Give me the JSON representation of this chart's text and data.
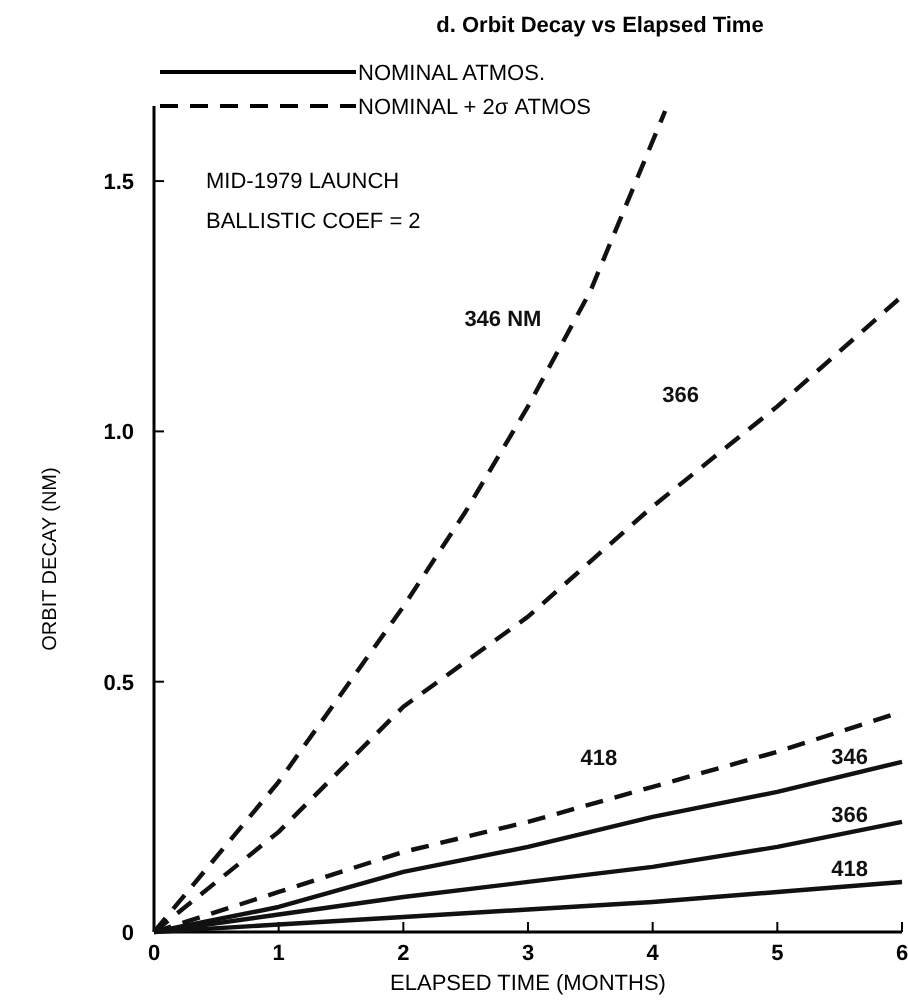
{
  "chart_data": {
    "type": "line",
    "title": "d. Orbit Decay vs Elapsed Time",
    "xlabel": "ELAPSED TIME (MONTHS)",
    "ylabel": "ORBIT DECAY (NM)",
    "xlim": [
      0,
      6
    ],
    "xticks": [
      0,
      1,
      2,
      3,
      4,
      5,
      6
    ],
    "ylim": [
      0,
      1.65
    ],
    "yticks": [
      0,
      0.5,
      {
        "value": 1,
        "label": "1.0"
      },
      1.5
    ],
    "grid": false,
    "series": [
      {
        "name": "346 NM",
        "color": "#111111",
        "line_style": "dashed",
        "x": [
          0,
          1,
          2,
          2.5,
          3,
          3.5,
          4.1
        ],
        "values": [
          0,
          0.3,
          0.65,
          0.84,
          1.05,
          1.28,
          1.64
        ]
      },
      {
        "name": "366",
        "color": "#111111",
        "line_style": "dashed",
        "x": [
          0,
          1,
          2,
          3,
          4,
          5,
          6
        ],
        "values": [
          0,
          0.2,
          0.45,
          0.63,
          0.85,
          1.05,
          1.27
        ]
      },
      {
        "name": "418",
        "color": "#111111",
        "line_style": "dashed",
        "x": [
          0,
          1,
          2,
          3,
          4,
          5,
          6
        ],
        "values": [
          0,
          0.08,
          0.16,
          0.22,
          0.29,
          0.36,
          0.44
        ]
      },
      {
        "name": "346",
        "color": "#111111",
        "line_style": "solid",
        "x": [
          0,
          1,
          2,
          3,
          4,
          5,
          6
        ],
        "values": [
          0,
          0.05,
          0.12,
          0.17,
          0.23,
          0.28,
          0.34
        ]
      },
      {
        "name": "366",
        "color": "#111111",
        "line_style": "solid",
        "x": [
          0,
          1,
          2,
          3,
          4,
          5,
          6
        ],
        "values": [
          0,
          0.035,
          0.07,
          0.1,
          0.13,
          0.17,
          0.22
        ]
      },
      {
        "name": "418",
        "color": "#111111",
        "line_style": "solid",
        "x": [
          0,
          1,
          2,
          3,
          4,
          5,
          6
        ],
        "values": [
          0,
          0.015,
          0.03,
          0.045,
          0.06,
          0.08,
          0.1
        ]
      }
    ],
    "annotations": [
      "NOMINAL ATMOS.",
      "NOMINAL + 2σ ATMOS",
      "MID-1979 LAUNCH",
      "BALLISTIC COEF = 2"
    ]
  }
}
